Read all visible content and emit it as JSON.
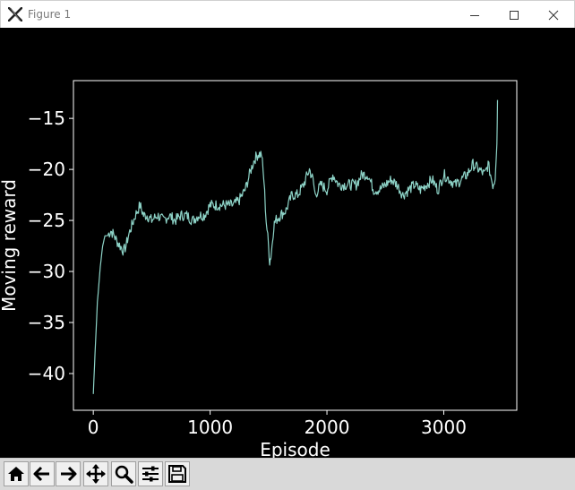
{
  "window": {
    "title": "Figure 1"
  },
  "toolbar": {
    "buttons": [
      "home-icon",
      "back-arrow-icon",
      "forward-arrow-icon",
      "pan-icon",
      "zoom-icon",
      "subplots-icon",
      "save-icon"
    ]
  },
  "chart_data": {
    "type": "line",
    "xlabel": "Episode",
    "ylabel": "Moving reward",
    "xlim": [
      -170,
      3625
    ],
    "ylim": [
      -43.6,
      -11.3
    ],
    "xticks": [
      0,
      1000,
      2000,
      3000
    ],
    "yticks": [
      -15,
      -20,
      -25,
      -30,
      -35,
      -40
    ],
    "xtick_labels": [
      "0",
      "1000",
      "2000",
      "3000"
    ],
    "ytick_labels": [
      "−15",
      "−20",
      "−25",
      "−30",
      "−35",
      "−40"
    ],
    "grid": false,
    "colors": {
      "background": "#000000",
      "axes": "#ffffff",
      "line": "#8dd3c7"
    },
    "series": [
      {
        "x": [
          0,
          15,
          35,
          60,
          80,
          100,
          120,
          150,
          180,
          200,
          230,
          260,
          280,
          300,
          330,
          360,
          380,
          400,
          430,
          460,
          500,
          550,
          600,
          650,
          700,
          750,
          800,
          850,
          900,
          950,
          1000,
          1050,
          1100,
          1150,
          1200,
          1250,
          1300,
          1350,
          1380,
          1410,
          1440,
          1460,
          1480,
          1500,
          1510,
          1520,
          1530,
          1545,
          1560,
          1600,
          1650,
          1700,
          1750,
          1800,
          1850,
          1880,
          1900,
          1950,
          2000,
          2050,
          2100,
          2150,
          2200,
          2250,
          2300,
          2350,
          2400,
          2450,
          2500,
          2550,
          2600,
          2650,
          2700,
          2750,
          2800,
          2850,
          2900,
          2950,
          3000,
          3050,
          3100,
          3150,
          3200,
          3250,
          3300,
          3350,
          3380,
          3400,
          3420,
          3440,
          3455,
          3460
        ],
        "y": [
          -42,
          -38,
          -33,
          -29.5,
          -27.5,
          -26.5,
          -26.5,
          -26,
          -26.5,
          -27,
          -27.5,
          -28,
          -27.5,
          -26.5,
          -25.5,
          -24.5,
          -24,
          -23.5,
          -24.5,
          -24.5,
          -25,
          -24.5,
          -25,
          -24.5,
          -25,
          -24.5,
          -24.5,
          -25,
          -24.5,
          -24.5,
          -23.5,
          -23.5,
          -23.5,
          -23.5,
          -23.5,
          -23,
          -22,
          -20,
          -19,
          -18.5,
          -18.5,
          -21,
          -25,
          -27.5,
          -29,
          -28.5,
          -27.5,
          -25.5,
          -25,
          -24.5,
          -24,
          -22.5,
          -22.5,
          -21.5,
          -20,
          -21,
          -22.5,
          -21.5,
          -22,
          -20.5,
          -21.5,
          -21.5,
          -21.5,
          -21.5,
          -20.5,
          -20.5,
          -22,
          -22,
          -21.5,
          -21,
          -21.5,
          -22.5,
          -22,
          -21.5,
          -22,
          -21.5,
          -21,
          -22,
          -20.5,
          -21,
          -21.5,
          -21,
          -20.5,
          -19.5,
          -20,
          -20.5,
          -19.5,
          -20.5,
          -21.5,
          -21,
          -17.5,
          -13.2
        ]
      }
    ]
  }
}
